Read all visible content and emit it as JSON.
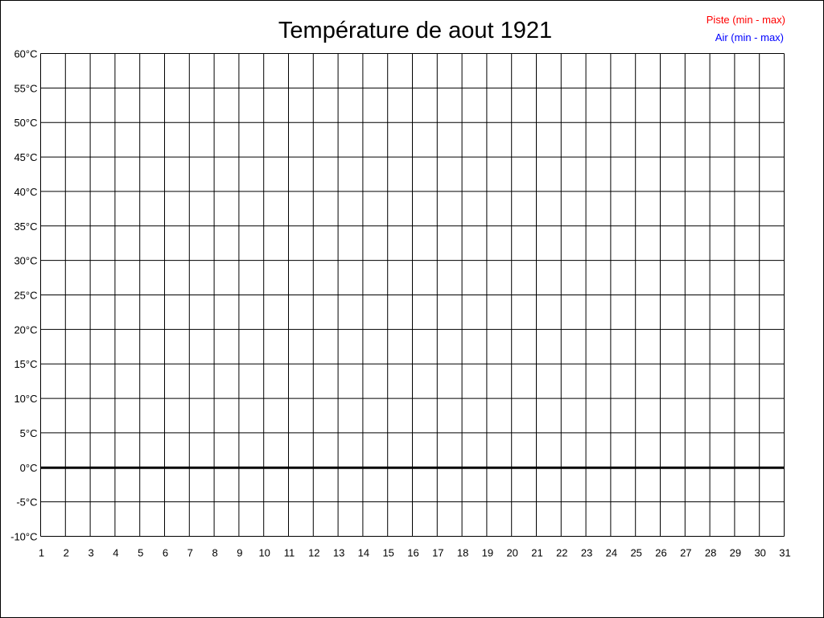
{
  "chart_data": {
    "type": "line",
    "title": "Température de aout 1921",
    "xlabel": "",
    "ylabel": "",
    "x_ticks": [
      "1",
      "2",
      "3",
      "4",
      "5",
      "6",
      "7",
      "8",
      "9",
      "10",
      "11",
      "12",
      "13",
      "14",
      "15",
      "16",
      "17",
      "18",
      "19",
      "20",
      "21",
      "22",
      "23",
      "24",
      "25",
      "26",
      "27",
      "28",
      "29",
      "30",
      "31"
    ],
    "xlim": [
      1,
      31
    ],
    "y_ticks": [
      "60°C",
      "55°C",
      "50°C",
      "45°C",
      "40°C",
      "35°C",
      "30°C",
      "25°C",
      "20°C",
      "15°C",
      "10°C",
      "5°C",
      "0°C",
      "-5°C",
      "-10°C"
    ],
    "ylim": [
      -10,
      60
    ],
    "y_step": 5,
    "grid": true,
    "zero_line": true,
    "legend_position": "top-right",
    "series": [
      {
        "name": "Piste (min - max)",
        "color": "#ff0000",
        "values": []
      },
      {
        "name": "Air (min - max)",
        "color": "#0000ff",
        "values": []
      }
    ]
  }
}
